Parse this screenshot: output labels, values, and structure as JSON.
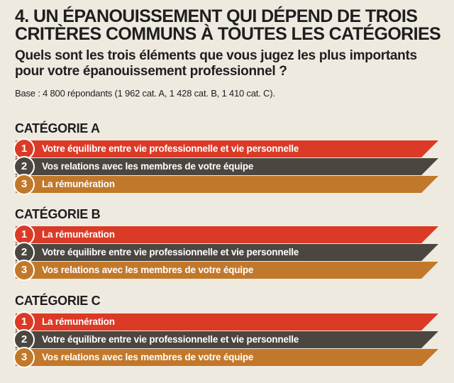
{
  "header": {
    "title_line1": "4. UN ÉPANOUISSEMENT QUI DÉPEND DE TROIS",
    "title_line2": "CRITÈRES COMMUNS À TOUTES LES CATÉGORIES",
    "question_line1": "Quels sont les trois éléments que vous jugez les plus importants",
    "question_line2": "pour votre épanouissement professionnel ?",
    "base": "Base : 4 800 répondants (1 962 cat. A, 1 428 cat. B, 1 410 cat. C)."
  },
  "colors": {
    "rank_1": "#db3a27",
    "rank_2": "#4b4740",
    "rank_3": "#c2782a",
    "background": "#efeae0"
  },
  "categories": [
    {
      "title": "CATÉGORIE A",
      "items": [
        {
          "rank": "1",
          "label": "Votre équilibre entre vie professionnelle et vie personnelle"
        },
        {
          "rank": "2",
          "label": "Vos relations avec les membres de votre équipe"
        },
        {
          "rank": "3",
          "label": "La rémunération"
        }
      ]
    },
    {
      "title": "CATÉGORIE B",
      "items": [
        {
          "rank": "1",
          "label": "La rémunération"
        },
        {
          "rank": "2",
          "label": "Votre équilibre entre vie professionnelle et vie personnelle"
        },
        {
          "rank": "3",
          "label": "Vos relations avec les membres de votre équipe"
        }
      ]
    },
    {
      "title": "CATÉGORIE C",
      "items": [
        {
          "rank": "1",
          "label": "La rémunération"
        },
        {
          "rank": "2",
          "label": "Votre équilibre entre vie professionnelle et vie personnelle"
        },
        {
          "rank": "3",
          "label": "Vos relations avec les membres de votre équipe"
        }
      ]
    }
  ]
}
